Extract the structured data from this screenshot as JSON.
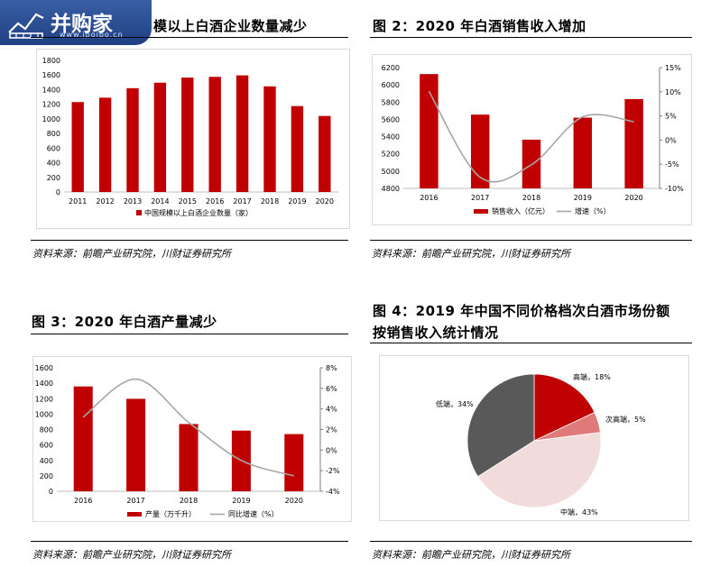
{
  "logo": {
    "text": "并购家",
    "url": "www.ipoipo.cn"
  },
  "fig1": {
    "title": "模以上白酒企业数量减少",
    "source": "资料来源：前瞻产业研究院，川财证券研究所",
    "chart_data": {
      "type": "bar",
      "categories": [
        "2011",
        "2012",
        "2013",
        "2014",
        "2015",
        "2016",
        "2017",
        "2018",
        "2019",
        "2020"
      ],
      "series": [
        {
          "name": "中国规模以上白酒企业数量（家）",
          "values": [
            1230,
            1290,
            1420,
            1495,
            1565,
            1575,
            1595,
            1445,
            1175,
            1040
          ]
        }
      ],
      "ylim": [
        0,
        1800
      ],
      "yticks": [
        0,
        200,
        400,
        600,
        800,
        1000,
        1200,
        1400,
        1600,
        1800
      ],
      "colors": {
        "bar": "#c00000"
      },
      "legend_position": "bottom"
    }
  },
  "fig2": {
    "title": "图 2：2020 年白酒销售收入增加",
    "source": "资料来源：前瞻产业研究院，川财证券研究所",
    "chart_data": {
      "type": "bar+line",
      "categories": [
        "2016",
        "2017",
        "2018",
        "2019",
        "2020"
      ],
      "series": [
        {
          "name": "销售收入（亿元）",
          "type": "bar",
          "axis": "left",
          "values": [
            6125,
            5655,
            5365,
            5620,
            5835
          ]
        },
        {
          "name": "增速（%）",
          "type": "line",
          "axis": "right",
          "values": [
            10.1,
            -7.7,
            -5.1,
            4.8,
            3.8
          ]
        }
      ],
      "ylim_left": [
        4800,
        6200
      ],
      "yticks_left": [
        4800,
        5000,
        5200,
        5400,
        5600,
        5800,
        6000,
        6200
      ],
      "ylim_right": [
        -10,
        15
      ],
      "yticks_right": [
        "-10%",
        "-5%",
        "0%",
        "5%",
        "10%",
        "15%"
      ],
      "yticks_right_values": [
        -10,
        -5,
        0,
        5,
        10,
        15
      ],
      "colors": {
        "bar": "#c00000",
        "line": "#a6a6a6"
      },
      "legend_position": "bottom"
    }
  },
  "fig3": {
    "title": "图 3：2020 年白酒产量减少",
    "source": "资料来源：前瞻产业研究院，川财证券研究所",
    "chart_data": {
      "type": "bar+line",
      "categories": [
        "2016",
        "2017",
        "2018",
        "2019",
        "2020"
      ],
      "series": [
        {
          "name": "产量（万千升）",
          "type": "bar",
          "axis": "left",
          "values": [
            1358,
            1198,
            871,
            786,
            741
          ]
        },
        {
          "name": "同比增速（%）",
          "type": "line",
          "axis": "right",
          "values": [
            3.2,
            6.9,
            2.7,
            -1.0,
            -2.5
          ]
        }
      ],
      "ylim_left": [
        0,
        1600
      ],
      "yticks_left": [
        0,
        200,
        400,
        600,
        800,
        1000,
        1200,
        1400,
        1600
      ],
      "ylim_right": [
        -4,
        8
      ],
      "yticks_right": [
        "-4%",
        "-2%",
        "0%",
        "2%",
        "4%",
        "6%",
        "8%"
      ],
      "yticks_right_values": [
        -4,
        -2,
        0,
        2,
        4,
        6,
        8
      ],
      "colors": {
        "bar": "#c00000",
        "line": "#a6a6a6"
      },
      "legend_position": "bottom"
    }
  },
  "fig4": {
    "title_line1": "图 4：2019 年中国不同价格档次白酒市场份额",
    "title_line2": "按销售收入统计情况",
    "source": "资料来源：前瞻产业研究院，川财证券研究所",
    "chart_data": {
      "type": "pie",
      "slices": [
        {
          "label": "高端，18%",
          "value": 18,
          "color": "#c00000"
        },
        {
          "label": "次高端，5%",
          "value": 5,
          "color": "#e07a7a"
        },
        {
          "label": "中端，43%",
          "value": 43,
          "color": "#f2dcdb"
        },
        {
          "label": "低端，34%",
          "value": 34,
          "color": "#595959"
        }
      ]
    }
  }
}
